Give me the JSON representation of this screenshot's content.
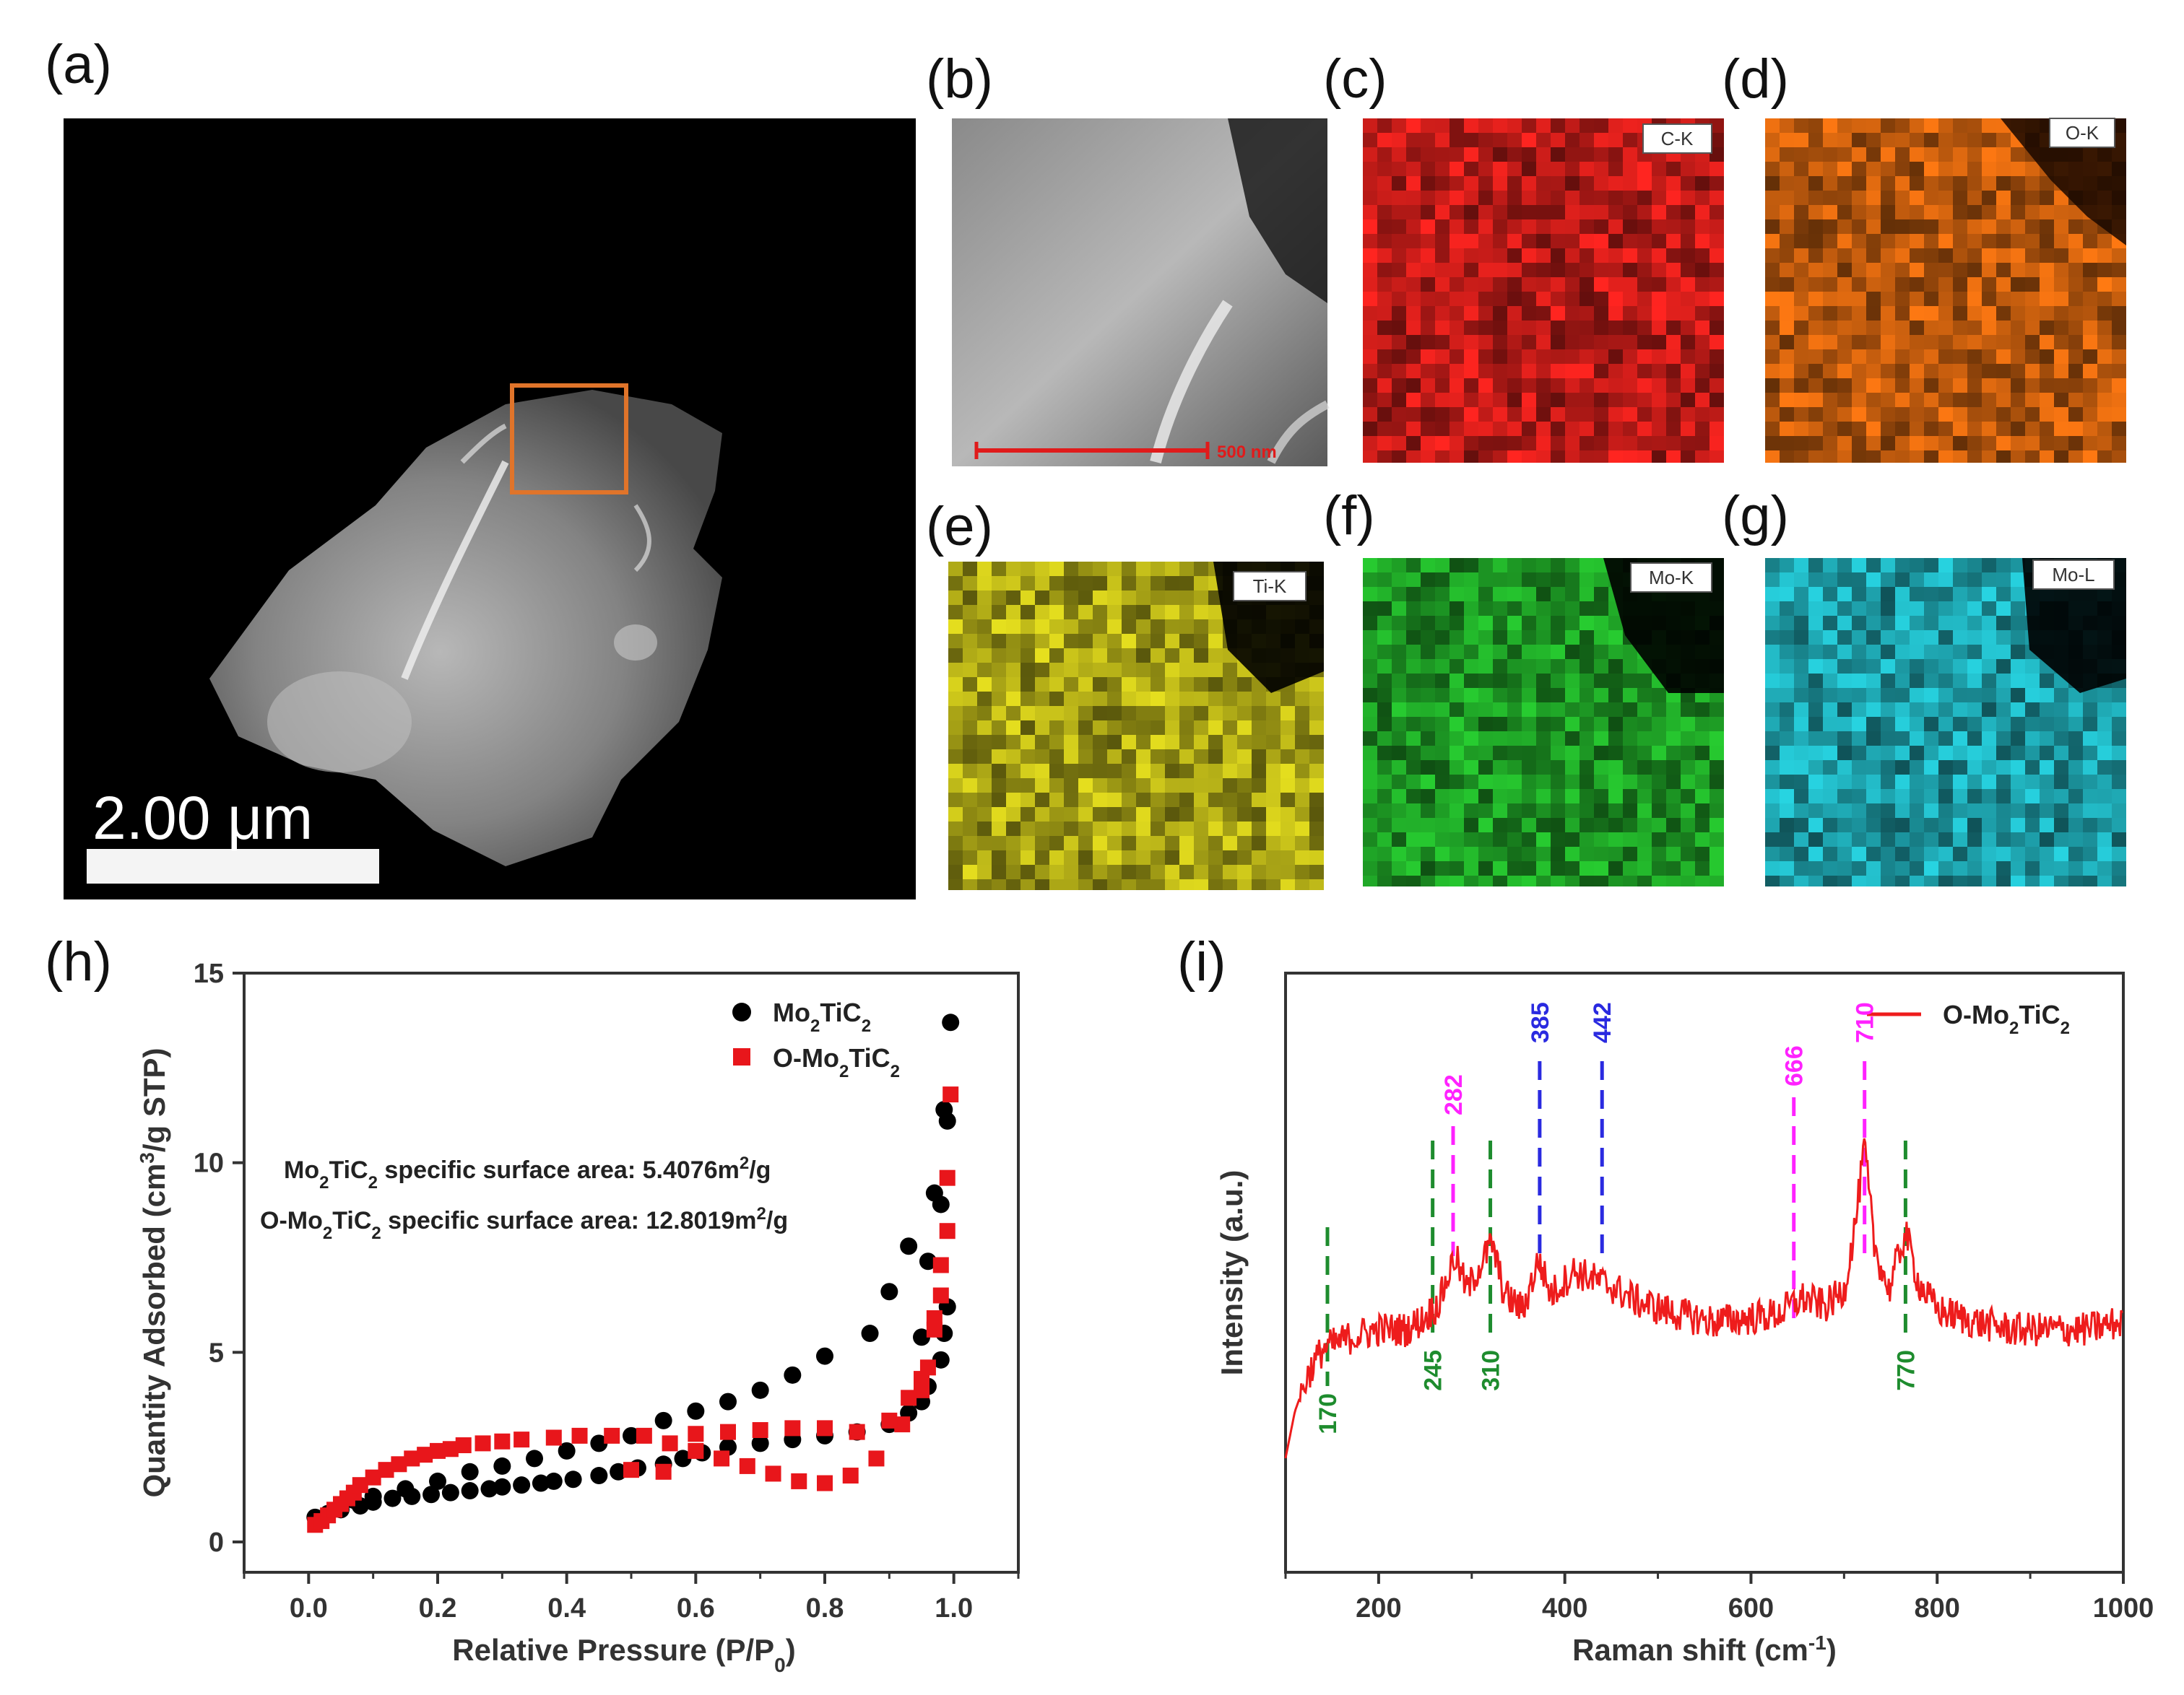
{
  "panels": {
    "a": {
      "label": "(a)",
      "scale_text": "2.00 μm"
    },
    "b": {
      "label": "(b)",
      "scale_text": "500 nm"
    },
    "c": {
      "label": "(c)",
      "tag": "C-K",
      "color": "#e0201c"
    },
    "d": {
      "label": "(d)",
      "tag": "O-K",
      "color": "#e06a10"
    },
    "e": {
      "label": "(e)",
      "tag": "Ti-K",
      "color": "#c8c21a"
    },
    "f": {
      "label": "(f)",
      "tag": "Mo-K",
      "color": "#22b22a"
    },
    "g": {
      "label": "(g)",
      "tag": "Mo-L",
      "color": "#22b8c4"
    },
    "h": {
      "label": "(h)"
    },
    "i": {
      "label": "(i)"
    }
  },
  "chart_data": [
    {
      "type": "scatter",
      "panel": "h",
      "xlabel": "Relative Pressure (P/P₀)",
      "ylabel": "Quantity Adsorbed (cm³/g STP)",
      "xlim": [
        -0.1,
        1.1
      ],
      "ylim": [
        -0.8,
        15
      ],
      "xticks": [
        "0.0",
        "0.2",
        "0.4",
        "0.6",
        "0.8",
        "1.0"
      ],
      "yticks": [
        "0",
        "5",
        "10",
        "15"
      ],
      "annotations": [
        "Mo₂TiC₂ specific surface area: 5.4076m²/g",
        "O-Mo₂TiC₂ specific  surface area: 12.8019m²/g"
      ],
      "series": [
        {
          "name": "Mo₂TiC₂",
          "marker": "circle",
          "color": "#000000",
          "x": [
            0.01,
            0.03,
            0.05,
            0.08,
            0.1,
            0.13,
            0.16,
            0.19,
            0.22,
            0.25,
            0.28,
            0.3,
            0.33,
            0.36,
            0.38,
            0.41,
            0.45,
            0.48,
            0.51,
            0.55,
            0.58,
            0.61,
            0.65,
            0.7,
            0.75,
            0.8,
            0.85,
            0.9,
            0.93,
            0.95,
            0.96,
            0.98,
            0.985,
            0.99,
            0.995,
            0.99,
            0.985,
            0.98,
            0.97,
            0.96,
            0.95,
            0.93,
            0.9,
            0.87,
            0.8,
            0.75,
            0.7,
            0.65,
            0.6,
            0.55,
            0.5,
            0.45,
            0.4,
            0.35,
            0.3,
            0.25,
            0.2,
            0.15,
            0.1,
            0.07
          ],
          "y": [
            0.65,
            0.75,
            0.85,
            0.95,
            1.05,
            1.15,
            1.2,
            1.25,
            1.3,
            1.35,
            1.4,
            1.45,
            1.5,
            1.55,
            1.6,
            1.65,
            1.75,
            1.85,
            1.95,
            2.05,
            2.2,
            2.35,
            2.5,
            2.6,
            2.7,
            2.8,
            2.9,
            3.1,
            3.4,
            3.7,
            4.1,
            4.8,
            5.5,
            6.2,
            13.7,
            11.1,
            11.4,
            8.9,
            9.2,
            7.4,
            5.4,
            7.8,
            6.6,
            5.5,
            4.9,
            4.4,
            4.0,
            3.7,
            3.45,
            3.2,
            2.8,
            2.6,
            2.4,
            2.2,
            2.0,
            1.85,
            1.6,
            1.4,
            1.2,
            1.1
          ]
        },
        {
          "name": "O-Mo₂TiC₂",
          "marker": "square",
          "color": "#e8161b",
          "x": [
            0.01,
            0.02,
            0.03,
            0.04,
            0.05,
            0.06,
            0.07,
            0.08,
            0.1,
            0.12,
            0.14,
            0.16,
            0.18,
            0.2,
            0.22,
            0.24,
            0.27,
            0.3,
            0.33,
            0.38,
            0.42,
            0.47,
            0.52,
            0.56,
            0.6,
            0.64,
            0.68,
            0.72,
            0.76,
            0.8,
            0.84,
            0.88,
            0.92,
            0.95,
            0.97,
            0.98,
            0.99,
            0.995,
            0.99,
            0.98,
            0.97,
            0.96,
            0.95,
            0.93,
            0.9,
            0.85,
            0.8,
            0.75,
            0.7,
            0.65,
            0.6,
            0.55,
            0.5
          ],
          "y": [
            0.45,
            0.55,
            0.7,
            0.85,
            1.0,
            1.15,
            1.3,
            1.5,
            1.7,
            1.9,
            2.05,
            2.2,
            2.3,
            2.4,
            2.45,
            2.55,
            2.6,
            2.65,
            2.7,
            2.75,
            2.8,
            2.8,
            2.8,
            2.6,
            2.4,
            2.2,
            2.0,
            1.8,
            1.6,
            1.55,
            1.75,
            2.2,
            3.1,
            4.3,
            5.9,
            7.3,
            9.6,
            11.8,
            8.2,
            6.5,
            5.6,
            4.6,
            4.0,
            3.8,
            3.2,
            2.9,
            3.0,
            3.0,
            2.95,
            2.9,
            2.85,
            1.85,
            1.9
          ]
        }
      ]
    },
    {
      "type": "line",
      "panel": "i",
      "xlabel": "Raman shift (cm⁻¹)",
      "ylabel": "Intensity (a.u.)",
      "xlim": [
        100,
        1000
      ],
      "xticks": [
        "200",
        "400",
        "600",
        "800",
        "1000"
      ],
      "legend": "O-Mo₂TiC₂",
      "line_color": "#ee1c1c",
      "profile": [
        [
          100,
          0.0
        ],
        [
          110,
          0.12
        ],
        [
          125,
          0.22
        ],
        [
          140,
          0.28
        ],
        [
          170,
          0.31
        ],
        [
          200,
          0.33
        ],
        [
          230,
          0.33
        ],
        [
          250,
          0.36
        ],
        [
          265,
          0.4
        ],
        [
          282,
          0.52
        ],
        [
          295,
          0.43
        ],
        [
          310,
          0.5
        ],
        [
          322,
          0.55
        ],
        [
          335,
          0.42
        ],
        [
          355,
          0.38
        ],
        [
          372,
          0.51
        ],
        [
          385,
          0.42
        ],
        [
          410,
          0.48
        ],
        [
          430,
          0.46
        ],
        [
          450,
          0.44
        ],
        [
          480,
          0.4
        ],
        [
          520,
          0.37
        ],
        [
          560,
          0.35
        ],
        [
          600,
          0.36
        ],
        [
          630,
          0.37
        ],
        [
          655,
          0.41
        ],
        [
          680,
          0.39
        ],
        [
          700,
          0.43
        ],
        [
          712,
          0.6
        ],
        [
          722,
          0.8
        ],
        [
          732,
          0.55
        ],
        [
          748,
          0.43
        ],
        [
          766,
          0.58
        ],
        [
          780,
          0.45
        ],
        [
          800,
          0.38
        ],
        [
          840,
          0.35
        ],
        [
          880,
          0.33
        ],
        [
          920,
          0.33
        ],
        [
          960,
          0.33
        ],
        [
          1000,
          0.35
        ]
      ],
      "peak_marks": [
        {
          "label": "170",
          "x": 145,
          "color": "#1e8c2e",
          "pos": "below"
        },
        {
          "label": "245",
          "x": 258,
          "color": "#1e8c2e",
          "pos": "below"
        },
        {
          "label": "282",
          "x": 280,
          "color": "#ff22ff",
          "pos": "above"
        },
        {
          "label": "310",
          "x": 320,
          "color": "#1e8c2e",
          "pos": "below"
        },
        {
          "label": "385",
          "x": 373,
          "color": "#2a2ae0",
          "pos": "above"
        },
        {
          "label": "442",
          "x": 440,
          "color": "#2a2ae0",
          "pos": "above"
        },
        {
          "label": "666",
          "x": 646,
          "color": "#ff22ff",
          "pos": "above"
        },
        {
          "label": "710",
          "x": 722,
          "color": "#ff22ff",
          "pos": "above"
        },
        {
          "label": "770",
          "x": 766,
          "color": "#1e8c2e",
          "pos": "below"
        }
      ]
    }
  ]
}
